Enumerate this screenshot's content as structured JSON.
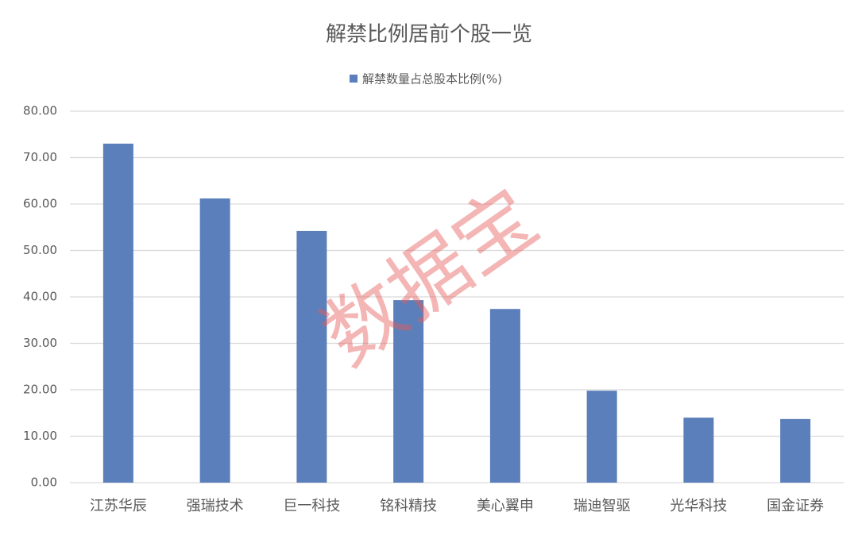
{
  "chart_data": {
    "type": "bar",
    "title": "解禁比例居前个股一览",
    "categories": [
      "江苏华辰",
      "强瑞技术",
      "巨一科技",
      "铭科精技",
      "美心翼申",
      "瑞迪智驱",
      "光华科技",
      "国金证券"
    ],
    "series": [
      {
        "name": "解禁数量占总股本比例(%)",
        "color": "#5b7fba",
        "values": [
          73.0,
          61.2,
          54.2,
          39.3,
          37.4,
          19.8,
          14.0,
          13.7
        ]
      }
    ],
    "ylim": [
      0,
      80
    ],
    "yticks": [
      {
        "value": 0,
        "label": "0.00"
      },
      {
        "value": 10,
        "label": "10.00"
      },
      {
        "value": 20,
        "label": "20.00"
      },
      {
        "value": 30,
        "label": "30.00"
      },
      {
        "value": 40,
        "label": "40.00"
      },
      {
        "value": 50,
        "label": "50.00"
      },
      {
        "value": 60,
        "label": "60.00"
      },
      {
        "value": 70,
        "label": "70.00"
      },
      {
        "value": 80,
        "label": "80.00"
      }
    ],
    "grid": true,
    "legend": "top",
    "watermark": "数据宝"
  }
}
